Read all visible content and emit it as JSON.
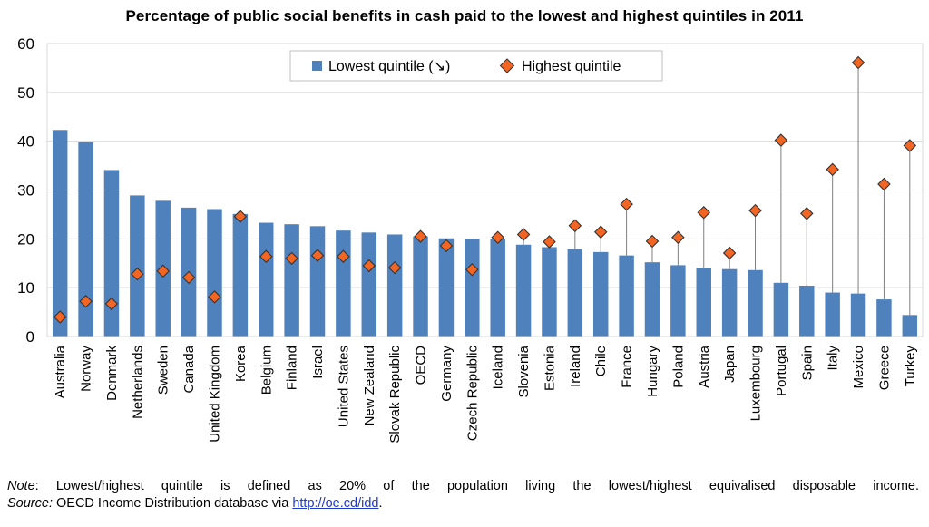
{
  "chart_data": {
    "type": "bar",
    "title": "Percentage of public social benefits in cash paid to the lowest and highest quintiles in 2011",
    "xlabel": "",
    "ylabel": "",
    "ylim": [
      0,
      60
    ],
    "yticks": [
      0,
      10,
      20,
      30,
      40,
      50,
      60
    ],
    "grid": true,
    "legend_position": "top-center",
    "categories": [
      "Australia",
      "Norway",
      "Denmark",
      "Netherlands",
      "Sweden",
      "Canada",
      "United Kingdom",
      "Korea",
      "Belgium",
      "Finland",
      "Israel",
      "United States",
      "New Zealand",
      "Slovak Republic",
      "OECD",
      "Germany",
      "Czech Republic",
      "Iceland",
      "Slovenia",
      "Estonia",
      "Ireland",
      "Chile",
      "France",
      "Hungary",
      "Poland",
      "Austria",
      "Japan",
      "Luxembourg",
      "Portugal",
      "Spain",
      "Italy",
      "Mexico",
      "Greece",
      "Turkey"
    ],
    "series": [
      {
        "name": "Lowest quintile (↘)",
        "kind": "bar",
        "color": "#4f81bd",
        "values": [
          42.3,
          39.8,
          34.1,
          28.9,
          27.8,
          26.4,
          26.1,
          25.1,
          23.3,
          23.0,
          22.6,
          21.7,
          21.3,
          20.9,
          20.5,
          20.1,
          20.0,
          19.9,
          18.8,
          18.3,
          17.9,
          17.3,
          16.6,
          15.2,
          14.6,
          14.1,
          13.8,
          13.6,
          11.0,
          10.4,
          9.0,
          8.8,
          7.6,
          4.4
        ]
      },
      {
        "name": "Highest quintile",
        "kind": "marker",
        "color": "#f26522",
        "values": [
          4.0,
          7.2,
          6.7,
          12.8,
          13.4,
          12.1,
          8.1,
          24.6,
          16.4,
          16.0,
          16.6,
          16.4,
          14.5,
          14.1,
          20.5,
          18.6,
          13.7,
          20.3,
          20.9,
          19.4,
          22.7,
          21.4,
          27.1,
          19.5,
          20.3,
          25.4,
          17.1,
          25.8,
          40.2,
          25.2,
          34.2,
          56.1,
          31.2,
          39.1
        ]
      }
    ]
  },
  "note": {
    "label": "Note",
    "text": ": Lowest/highest quintile is defined as 20% of the population living the lowest/highest equivalised disposable income.",
    "source_label": "Source:",
    "source_text": " OECD Income Distribution database via ",
    "source_link": "http://oe.cd/idd",
    "source_end": "."
  }
}
